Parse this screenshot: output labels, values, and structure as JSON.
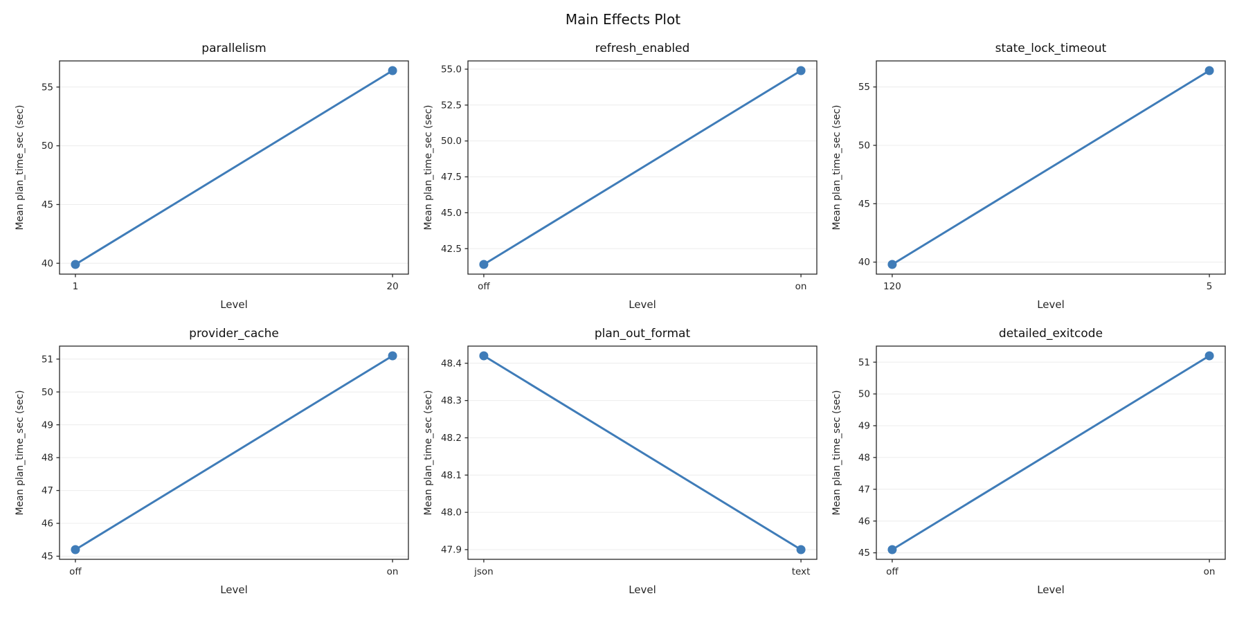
{
  "figure_title": "Main Effects Plot",
  "style": {
    "line_color": "#3f7cb8",
    "axis_color": "#262626",
    "grid_color": "#ececec",
    "text_color": "#262626",
    "title_color": "#111111"
  },
  "chart_data": [
    {
      "type": "line",
      "title": "parallelism",
      "categories": [
        "1",
        "20"
      ],
      "values": [
        39.9,
        56.4
      ],
      "xlabel": "Level",
      "ylabel": "Mean plan_time_sec (sec)",
      "ylim": [
        39.075,
        57.225
      ],
      "ytick_values": [
        40,
        45,
        50,
        55
      ],
      "ytick_labels": [
        "40",
        "45",
        "50",
        "55"
      ],
      "grid": true,
      "legend": "none"
    },
    {
      "type": "line",
      "title": "refresh_enabled",
      "categories": [
        "off",
        "on"
      ],
      "values": [
        41.4,
        54.9
      ],
      "xlabel": "Level",
      "ylabel": "Mean plan_time_sec (sec)",
      "ylim": [
        40.725,
        55.575
      ],
      "ytick_values": [
        42.5,
        45.0,
        47.5,
        50.0,
        52.5,
        55.0
      ],
      "ytick_labels": [
        "42.5",
        "45.0",
        "47.5",
        "50.0",
        "52.5",
        "55.0"
      ],
      "grid": true,
      "legend": "none"
    },
    {
      "type": "line",
      "title": "state_lock_timeout",
      "categories": [
        "120",
        "5"
      ],
      "values": [
        39.8,
        56.4
      ],
      "xlabel": "Level",
      "ylabel": "Mean plan_time_sec (sec)",
      "ylim": [
        38.97,
        57.23
      ],
      "ytick_values": [
        40,
        45,
        50,
        55
      ],
      "ytick_labels": [
        "40",
        "45",
        "50",
        "55"
      ],
      "grid": true,
      "legend": "none"
    },
    {
      "type": "line",
      "title": "provider_cache",
      "categories": [
        "off",
        "on"
      ],
      "values": [
        45.2,
        51.1
      ],
      "xlabel": "Level",
      "ylabel": "Mean plan_time_sec (sec)",
      "ylim": [
        44.905,
        51.395
      ],
      "ytick_values": [
        45,
        46,
        47,
        48,
        49,
        50,
        51
      ],
      "ytick_labels": [
        "45",
        "46",
        "47",
        "48",
        "49",
        "50",
        "51"
      ],
      "grid": true,
      "legend": "none"
    },
    {
      "type": "line",
      "title": "plan_out_format",
      "categories": [
        "json",
        "text"
      ],
      "values": [
        48.42,
        47.9
      ],
      "xlabel": "Level",
      "ylabel": "Mean plan_time_sec (sec)",
      "ylim": [
        47.874,
        48.446
      ],
      "ytick_values": [
        47.9,
        48.0,
        48.1,
        48.2,
        48.3,
        48.4
      ],
      "ytick_labels": [
        "47.9",
        "48.0",
        "48.1",
        "48.2",
        "48.3",
        "48.4"
      ],
      "grid": true,
      "legend": "none"
    },
    {
      "type": "line",
      "title": "detailed_exitcode",
      "categories": [
        "off",
        "on"
      ],
      "values": [
        45.1,
        51.2
      ],
      "xlabel": "Level",
      "ylabel": "Mean plan_time_sec (sec)",
      "ylim": [
        44.795,
        51.505
      ],
      "ytick_values": [
        45,
        46,
        47,
        48,
        49,
        50,
        51
      ],
      "ytick_labels": [
        "45",
        "46",
        "47",
        "48",
        "49",
        "50",
        "51"
      ],
      "grid": true,
      "legend": "none"
    }
  ]
}
